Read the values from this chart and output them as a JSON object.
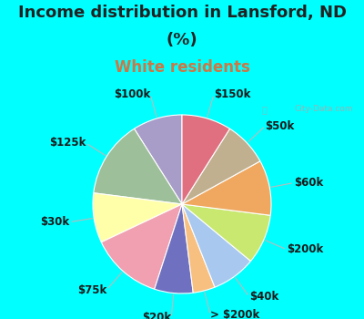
{
  "title_line1": "Income distribution in Lansford, ND",
  "title_line2": "(%)",
  "subtitle": "White residents",
  "bg_cyan": "#00FFFF",
  "labels": [
    "$100k",
    "$125k",
    "$30k",
    "$75k",
    "$20k",
    "> $200k",
    "$40k",
    "$200k",
    "$60k",
    "$50k",
    "$150k"
  ],
  "values": [
    9,
    14,
    9,
    13,
    7,
    4,
    8,
    9,
    10,
    8,
    9
  ],
  "colors": [
    "#a89cc8",
    "#9dbf99",
    "#ffffaa",
    "#f0a0b0",
    "#7070c0",
    "#f8c080",
    "#a8c8f0",
    "#c8e870",
    "#f0a860",
    "#c0b090",
    "#e07080"
  ],
  "startangle": 90,
  "title_fontsize": 13,
  "subtitle_fontsize": 12,
  "label_fontsize": 8.5,
  "watermark_text": "City-Data.com"
}
